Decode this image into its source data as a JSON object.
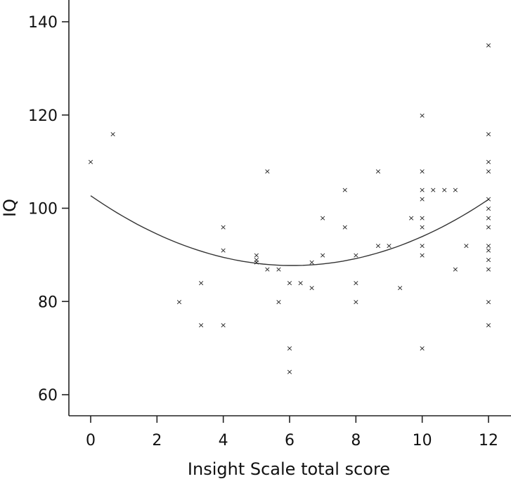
{
  "chart_data": {
    "type": "scatter",
    "title": "",
    "xlabel": "Insight Scale total score",
    "ylabel": "IQ",
    "xlim": [
      -0.6,
      12.6
    ],
    "ylim": [
      57,
      145
    ],
    "xticks": [
      0,
      2,
      4,
      6,
      8,
      10,
      12
    ],
    "yticks": [
      60,
      80,
      100,
      120,
      140
    ],
    "grid": false,
    "marker": "×",
    "series": [
      {
        "points": [
          [
            0,
            110
          ],
          [
            0.67,
            116
          ],
          [
            2.67,
            80
          ],
          [
            3.33,
            84
          ],
          [
            3.33,
            75
          ],
          [
            4,
            96
          ],
          [
            4,
            91
          ],
          [
            4,
            75
          ],
          [
            5,
            90
          ],
          [
            5,
            89
          ],
          [
            5,
            88.5
          ],
          [
            5.33,
            108
          ],
          [
            5.33,
            87
          ],
          [
            5.67,
            87
          ],
          [
            5.67,
            80
          ],
          [
            6,
            84
          ],
          [
            6,
            70
          ],
          [
            6,
            65
          ],
          [
            6.33,
            84
          ],
          [
            6.67,
            88.5
          ],
          [
            6.67,
            83
          ],
          [
            7,
            98
          ],
          [
            7,
            90
          ],
          [
            7.67,
            104
          ],
          [
            7.67,
            96
          ],
          [
            8,
            90
          ],
          [
            8,
            84
          ],
          [
            8,
            80
          ],
          [
            8.67,
            108
          ],
          [
            8.67,
            92
          ],
          [
            9,
            92
          ],
          [
            9.33,
            83
          ],
          [
            9.67,
            98
          ],
          [
            10,
            120
          ],
          [
            10,
            108
          ],
          [
            10,
            104
          ],
          [
            10,
            102
          ],
          [
            10,
            98
          ],
          [
            10,
            96
          ],
          [
            10,
            92
          ],
          [
            10,
            90
          ],
          [
            10,
            70
          ],
          [
            10.33,
            104
          ],
          [
            10.67,
            104
          ],
          [
            11,
            104
          ],
          [
            11,
            87
          ],
          [
            11.33,
            92
          ],
          [
            12,
            135
          ],
          [
            12,
            116
          ],
          [
            12,
            110
          ],
          [
            12,
            108
          ],
          [
            12,
            102
          ],
          [
            12,
            100
          ],
          [
            12,
            98
          ],
          [
            12,
            96
          ],
          [
            12,
            92
          ],
          [
            12,
            91
          ],
          [
            12,
            89
          ],
          [
            12,
            87
          ],
          [
            12,
            80
          ],
          [
            12,
            75
          ]
        ]
      }
    ],
    "fit_curve": {
      "type": "quadratic",
      "points": [
        [
          0,
          102.5
        ],
        [
          3,
          92
        ],
        [
          6,
          87.5
        ],
        [
          9,
          91
        ],
        [
          12,
          102
        ]
      ]
    }
  }
}
